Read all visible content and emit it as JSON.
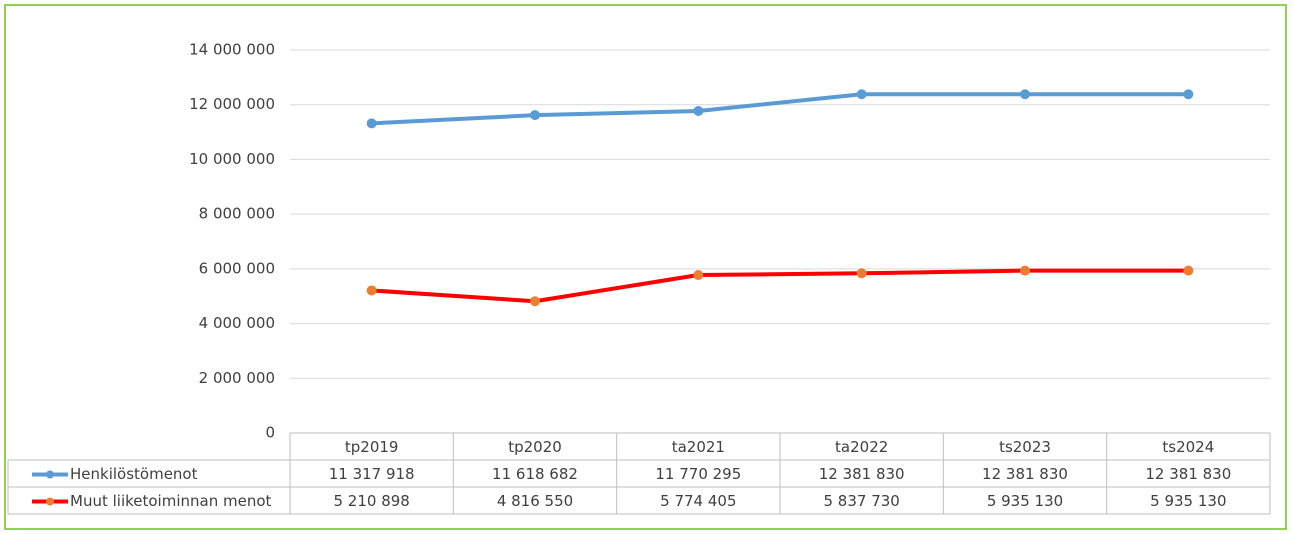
{
  "chart_data": {
    "type": "line",
    "categories": [
      "tp2019",
      "tp2020",
      "ta2021",
      "ta2022",
      "ts2023",
      "ts2024"
    ],
    "series": [
      {
        "name": "Henkilöstömenot",
        "color": "#5b9bd5",
        "marker_color": "#5b9bd5",
        "values": [
          11317918,
          11618682,
          11770295,
          12381830,
          12381830,
          12381830
        ],
        "value_labels": [
          "11 317 918",
          "11 618 682",
          "11 770 295",
          "12 381 830",
          "12 381 830",
          "12 381 830"
        ]
      },
      {
        "name": "Muut liiketoiminnan menot",
        "color": "#ff0000",
        "marker_color": "#ed7d31",
        "values": [
          5210898,
          4816550,
          5774405,
          5837730,
          5935130,
          5935130
        ],
        "value_labels": [
          "5 210 898",
          "4 816 550",
          "5 774 405",
          "5 837 730",
          "5 935 130",
          "5 935 130"
        ]
      }
    ],
    "ylim": [
      0,
      14000000
    ],
    "yticks": [
      0,
      {
        "value": 2000000,
        "label": "2 000 000"
      },
      {
        "value": 4000000,
        "label": "4 000 000"
      },
      {
        "value": 6000000,
        "label": "6 000 000"
      },
      {
        "value": 8000000,
        "label": "8 000 000"
      },
      {
        "value": 10000000,
        "label": "10 000 000"
      },
      {
        "value": 12000000,
        "label": "12 000 000"
      },
      {
        "value": 14000000,
        "label": "14 000 000"
      }
    ],
    "grid": true,
    "data_table": true
  }
}
